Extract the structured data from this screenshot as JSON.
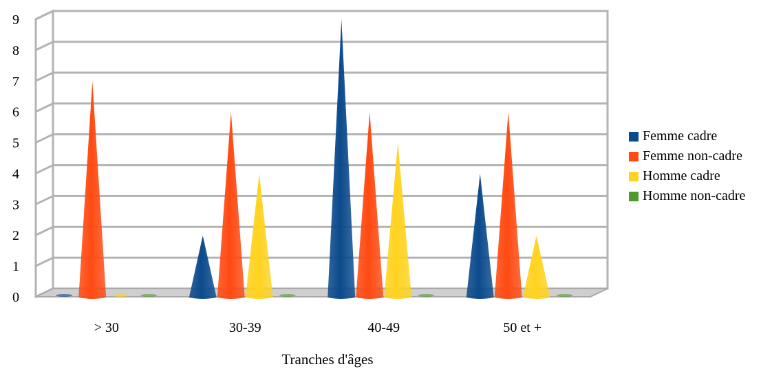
{
  "chart_data": {
    "type": "bar",
    "style": "3d-cone",
    "categories": [
      "> 30",
      "30-39",
      "40-49",
      "50 et +"
    ],
    "series": [
      {
        "name": "Femme cadre",
        "color": "#0b4a8c",
        "values": [
          0,
          2,
          9,
          4
        ]
      },
      {
        "name": "Femme non-cadre",
        "color": "#ff4a12",
        "values": [
          7,
          6,
          6,
          6
        ]
      },
      {
        "name": "Homme cadre",
        "color": "#ffd320",
        "values": [
          0,
          4,
          5,
          2
        ]
      },
      {
        "name": "Homme non-cadre",
        "color": "#4c9a2a",
        "values": [
          0,
          0,
          0,
          0
        ]
      }
    ],
    "title": "",
    "xlabel": "Tranches d'âges",
    "ylabel": "",
    "ylim": [
      0,
      9
    ],
    "yticks": [
      "0",
      "1",
      "2",
      "3",
      "4",
      "5",
      "6",
      "7",
      "8",
      "9"
    ],
    "grid": true,
    "legend_position": "right"
  }
}
